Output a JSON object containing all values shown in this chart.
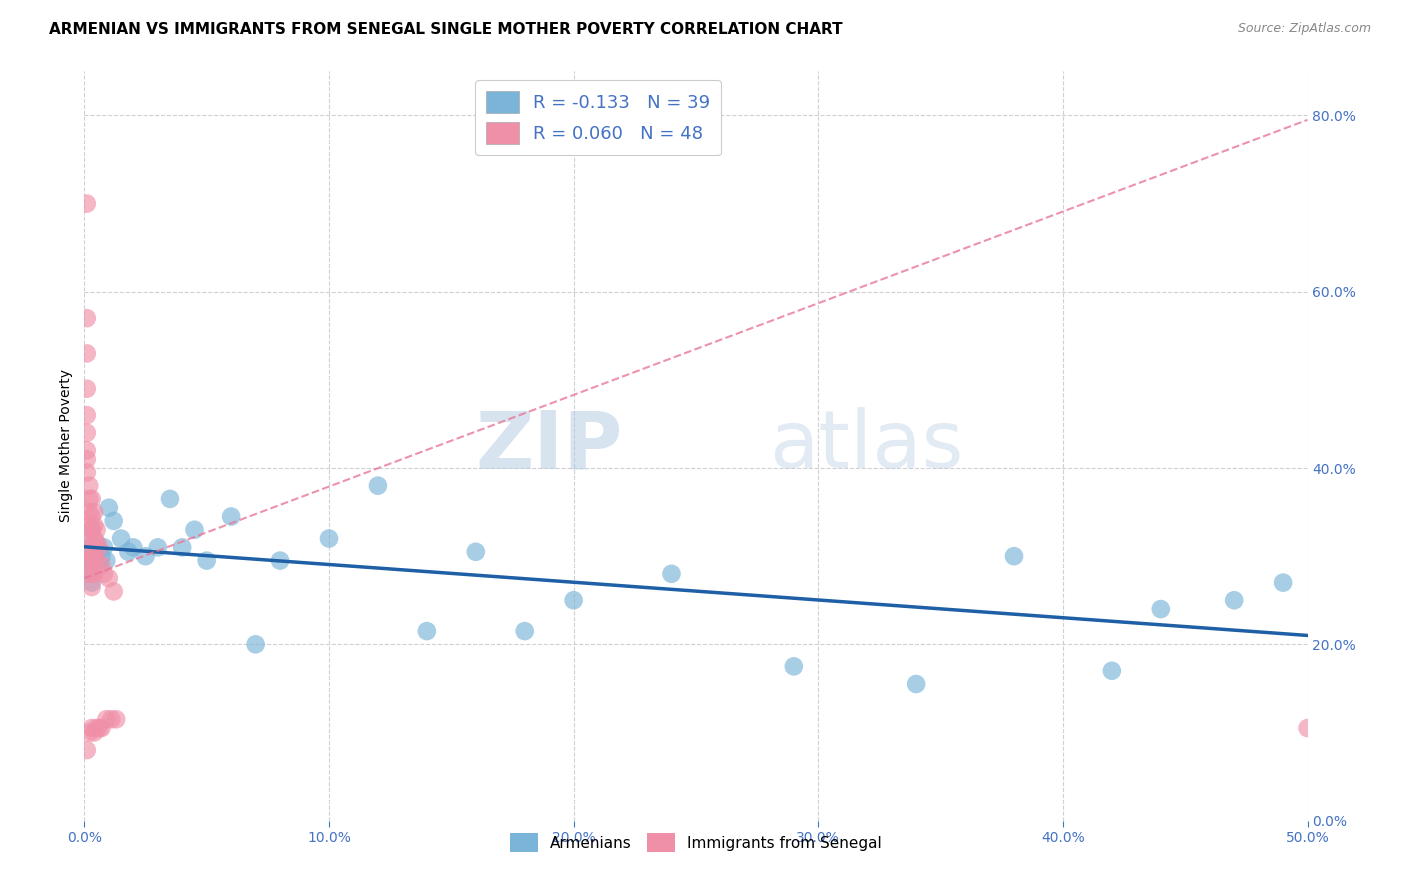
{
  "title": "ARMENIAN VS IMMIGRANTS FROM SENEGAL SINGLE MOTHER POVERTY CORRELATION CHART",
  "source": "Source: ZipAtlas.com",
  "ylabel": "Single Mother Poverty",
  "xlim": [
    0.0,
    0.5
  ],
  "ylim": [
    0.0,
    0.85
  ],
  "legend_entries": [
    {
      "label": "R = -0.133   N = 39",
      "color": "#aec6e8"
    },
    {
      "label": "R = 0.060   N = 48",
      "color": "#f4a0b8"
    }
  ],
  "legend_labels_bottom": [
    "Armenians",
    "Immigrants from Senegal"
  ],
  "armenians_x": [
    0.001,
    0.002,
    0.002,
    0.003,
    0.003,
    0.004,
    0.005,
    0.006,
    0.007,
    0.008,
    0.009,
    0.01,
    0.012,
    0.015,
    0.018,
    0.02,
    0.025,
    0.03,
    0.035,
    0.04,
    0.045,
    0.05,
    0.06,
    0.07,
    0.08,
    0.1,
    0.12,
    0.14,
    0.16,
    0.18,
    0.2,
    0.24,
    0.29,
    0.34,
    0.38,
    0.42,
    0.44,
    0.47,
    0.49
  ],
  "armenians_y": [
    0.285,
    0.31,
    0.295,
    0.33,
    0.27,
    0.3,
    0.315,
    0.29,
    0.3,
    0.31,
    0.295,
    0.355,
    0.34,
    0.32,
    0.305,
    0.31,
    0.3,
    0.31,
    0.365,
    0.31,
    0.33,
    0.295,
    0.345,
    0.2,
    0.295,
    0.32,
    0.38,
    0.215,
    0.305,
    0.215,
    0.25,
    0.28,
    0.175,
    0.155,
    0.3,
    0.17,
    0.24,
    0.25,
    0.27
  ],
  "senegal_x": [
    0.001,
    0.001,
    0.001,
    0.001,
    0.001,
    0.001,
    0.001,
    0.001,
    0.001,
    0.001,
    0.002,
    0.002,
    0.002,
    0.002,
    0.002,
    0.002,
    0.002,
    0.002,
    0.002,
    0.003,
    0.003,
    0.003,
    0.003,
    0.003,
    0.003,
    0.003,
    0.003,
    0.004,
    0.004,
    0.004,
    0.004,
    0.004,
    0.004,
    0.005,
    0.005,
    0.005,
    0.005,
    0.006,
    0.006,
    0.007,
    0.007,
    0.008,
    0.009,
    0.01,
    0.011,
    0.012,
    0.013,
    0.5
  ],
  "senegal_y": [
    0.7,
    0.57,
    0.53,
    0.49,
    0.46,
    0.44,
    0.42,
    0.41,
    0.395,
    0.08,
    0.38,
    0.365,
    0.35,
    0.335,
    0.32,
    0.305,
    0.295,
    0.28,
    0.1,
    0.365,
    0.345,
    0.33,
    0.31,
    0.295,
    0.28,
    0.265,
    0.105,
    0.35,
    0.335,
    0.32,
    0.3,
    0.28,
    0.1,
    0.33,
    0.315,
    0.295,
    0.105,
    0.31,
    0.105,
    0.29,
    0.105,
    0.28,
    0.115,
    0.275,
    0.115,
    0.26,
    0.115,
    0.105
  ],
  "armenian_color": "#7ab4d8",
  "senegal_color": "#f090a8",
  "armenian_line_color": "#1f5fa6",
  "senegal_line_color": "#e87898",
  "watermark_zip": "ZIP",
  "watermark_atlas": "atlas",
  "background_color": "#ffffff",
  "grid_color": "#d0d0d0",
  "title_fontsize": 11,
  "axis_label_fontsize": 10,
  "tick_fontsize": 10,
  "tick_color": "#4472c4",
  "right_tick_color": "#4472c4"
}
